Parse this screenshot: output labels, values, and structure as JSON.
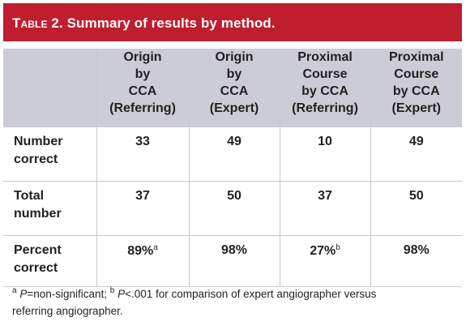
{
  "title": {
    "lead": "Table 2.",
    "text": "Summary of results by method."
  },
  "columns": [
    [
      "Origin",
      "by",
      "CCA",
      "(Referring)"
    ],
    [
      "Origin",
      "by",
      "CCA",
      "(Expert)"
    ],
    [
      "Proximal",
      "Course",
      "by CCA",
      "(Referring)"
    ],
    [
      "Proximal",
      "Course",
      "by CCA",
      "(Expert)"
    ]
  ],
  "rows": [
    {
      "label": [
        "Number",
        "correct"
      ],
      "values": [
        "33",
        "49",
        "10",
        "49"
      ],
      "sups": [
        "",
        "",
        "",
        ""
      ]
    },
    {
      "label": [
        "Total",
        "number"
      ],
      "values": [
        "37",
        "50",
        "37",
        "50"
      ],
      "sups": [
        "",
        "",
        "",
        ""
      ]
    },
    {
      "label": [
        "Percent",
        "correct"
      ],
      "values": [
        "89%",
        "98%",
        "27%",
        "98%"
      ],
      "sups": [
        "a",
        "",
        "b",
        ""
      ]
    }
  ],
  "footnote": {
    "a_mark": "a",
    "a_italic": "P",
    "a_text": "=non-significant; ",
    "b_mark": "b",
    "b_italic": "P",
    "b_text": "<.001 for comparison of expert angiographer versus",
    "line2": "referring angiographer."
  }
}
